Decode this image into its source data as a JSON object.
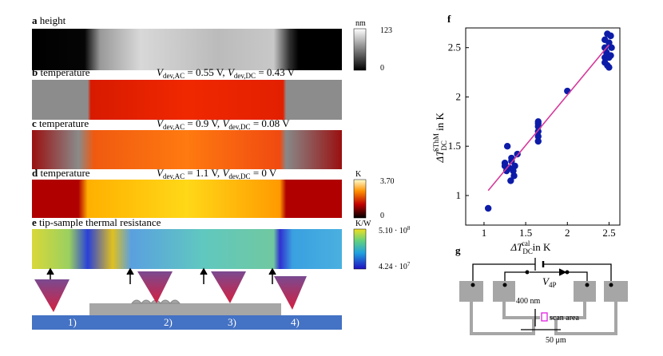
{
  "panels": {
    "a": {
      "letter": "a",
      "caption": "height",
      "cbar": {
        "unit": "nm",
        "max": "123",
        "min": "0"
      }
    },
    "b": {
      "letter": "b",
      "caption": "temperature",
      "cond": [
        "V",
        "dev,AC",
        " = 0.55 V, ",
        "V",
        "dev,DC",
        " = 0.43 V"
      ]
    },
    "c": {
      "letter": "c",
      "caption": "temperature",
      "cond": [
        "V",
        "dev,AC",
        " = 0.9 V, ",
        "V",
        "dev,DC",
        " = 0.08 V"
      ]
    },
    "d": {
      "letter": "d",
      "caption": "temperature",
      "cond": [
        "V",
        "dev,AC",
        " = 1.1 V, ",
        "V",
        "dev,DC",
        " = 0 V"
      ],
      "cbar": {
        "unit": "K",
        "max": "3.70",
        "min": "0"
      }
    },
    "e": {
      "letter": "e",
      "caption": "tip-sample thermal resistance",
      "cbar": {
        "unit": "K/W",
        "max": [
          "5.10 · 10",
          "8"
        ],
        "min": [
          "4.24 · 10",
          "7"
        ]
      }
    },
    "schematic": {
      "positions": [
        "1)",
        "2)",
        "3)",
        "4)"
      ]
    },
    "g": {
      "letter": "g",
      "v4p": [
        "V",
        "4P"
      ],
      "gap": "400 nm",
      "scan": "scan area",
      "width": "50 μm"
    }
  },
  "chart_data": {
    "type": "scatter",
    "letter": "f",
    "xlabel": [
      "ΔT",
      "DC",
      "cal",
      " in K"
    ],
    "ylabel": [
      "ΔT",
      "DC",
      "SThM",
      " in K"
    ],
    "xlim": [
      0.78,
      2.63
    ],
    "ylim": [
      0.7,
      2.7
    ],
    "xticks": [
      1,
      1.5,
      2,
      2.5
    ],
    "yticks": [
      1,
      1.5,
      2,
      2.5
    ],
    "series": [
      {
        "color": "#0d1ca8",
        "x": [
          1.05,
          1.25,
          1.25,
          1.27,
          1.28,
          1.3,
          1.32,
          1.33,
          1.35,
          1.37,
          1.4,
          1.33,
          1.36,
          1.65,
          1.65,
          1.65,
          1.65,
          1.65,
          1.65,
          2.0,
          2.45,
          2.45,
          2.45,
          2.45,
          2.47,
          2.48,
          2.48,
          2.5,
          2.5,
          2.5,
          2.52,
          2.52,
          2.53
        ],
        "values": [
          0.87,
          1.3,
          1.33,
          1.25,
          1.5,
          1.28,
          1.15,
          1.35,
          1.25,
          1.3,
          1.42,
          1.38,
          1.2,
          1.55,
          1.6,
          1.65,
          1.7,
          1.73,
          1.75,
          2.06,
          2.4,
          2.35,
          2.5,
          2.58,
          2.45,
          2.32,
          2.64,
          2.3,
          2.4,
          2.55,
          2.42,
          2.62,
          2.5
        ]
      }
    ],
    "fit": {
      "color": "#d63a9b",
      "x": [
        1.05,
        2.5
      ],
      "values": [
        1.05,
        2.53
      ]
    }
  }
}
